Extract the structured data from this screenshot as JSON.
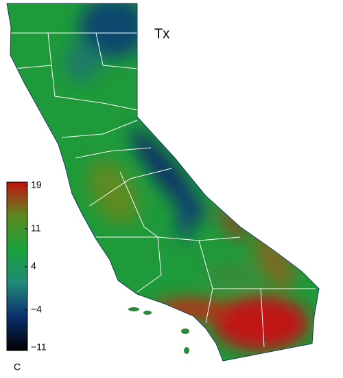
{
  "map": {
    "title": "Tx",
    "colorbar": {
      "unit": "C",
      "lim": [
        -11,
        19
      ],
      "ticks": [
        19,
        11,
        4,
        {
          "value": -4,
          "label": "−4"
        },
        {
          "value": -11,
          "label": "−11"
        }
      ],
      "colors": [
        "#000000",
        "#0b2f6e",
        "#1f8a78",
        "#1aa23a",
        "#5a8a20",
        "#c41010"
      ]
    }
  }
}
